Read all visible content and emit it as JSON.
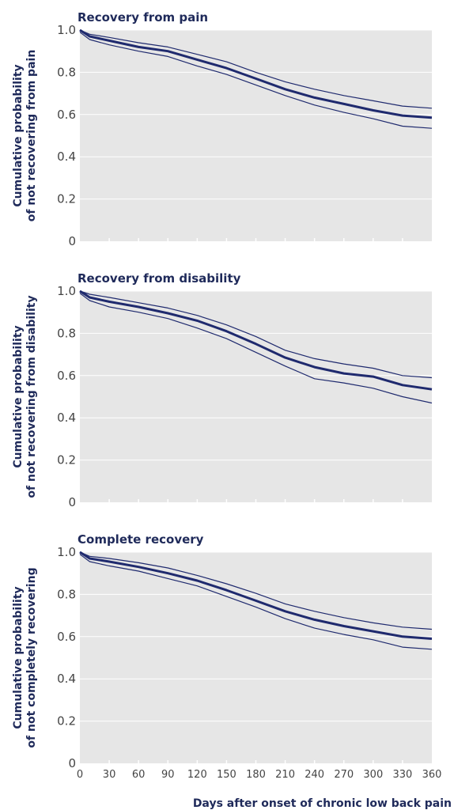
{
  "chart_data": [
    {
      "type": "line",
      "title": "Recovery from pain",
      "ylabel_lines": [
        "Cumulative probability",
        "of not recovering from pain"
      ],
      "ylim": [
        0,
        1.0
      ],
      "yticks": [
        "0",
        "0.2",
        "0.4",
        "0.6",
        "0.8",
        "1.0"
      ],
      "xlim": [
        0,
        360
      ],
      "x": [
        0,
        10,
        30,
        60,
        90,
        120,
        150,
        180,
        210,
        240,
        270,
        300,
        330,
        360
      ],
      "series": [
        {
          "role": "estimate",
          "values": [
            1.0,
            0.97,
            0.95,
            0.92,
            0.9,
            0.86,
            0.82,
            0.77,
            0.72,
            0.68,
            0.65,
            0.62,
            0.595,
            0.585
          ]
        },
        {
          "role": "upper",
          "values": [
            1.0,
            0.98,
            0.965,
            0.94,
            0.92,
            0.885,
            0.85,
            0.8,
            0.755,
            0.72,
            0.69,
            0.665,
            0.64,
            0.63
          ]
        },
        {
          "role": "lower",
          "values": [
            0.99,
            0.955,
            0.93,
            0.9,
            0.875,
            0.83,
            0.79,
            0.74,
            0.69,
            0.645,
            0.61,
            0.58,
            0.545,
            0.535
          ]
        }
      ]
    },
    {
      "type": "line",
      "title": "Recovery from disability",
      "ylabel_lines": [
        "Cumulative probability",
        "of not recovering from disability"
      ],
      "ylim": [
        0,
        1.0
      ],
      "yticks": [
        "0",
        "0.2",
        "0.4",
        "0.6",
        "0.8",
        "1.0"
      ],
      "xlim": [
        0,
        360
      ],
      "x": [
        0,
        10,
        30,
        60,
        90,
        120,
        150,
        180,
        210,
        240,
        270,
        300,
        330,
        360
      ],
      "series": [
        {
          "role": "estimate",
          "values": [
            1.0,
            0.97,
            0.95,
            0.925,
            0.895,
            0.86,
            0.81,
            0.75,
            0.685,
            0.64,
            0.61,
            0.595,
            0.555,
            0.535
          ]
        },
        {
          "role": "upper",
          "values": [
            1.0,
            0.985,
            0.97,
            0.945,
            0.92,
            0.885,
            0.84,
            0.785,
            0.72,
            0.68,
            0.655,
            0.635,
            0.6,
            0.59
          ]
        },
        {
          "role": "lower",
          "values": [
            0.99,
            0.955,
            0.925,
            0.9,
            0.87,
            0.825,
            0.775,
            0.71,
            0.645,
            0.585,
            0.565,
            0.54,
            0.5,
            0.47
          ]
        }
      ]
    },
    {
      "type": "line",
      "title": "Complete recovery",
      "ylabel_lines": [
        "Cumulative probability",
        "of not completely recovering"
      ],
      "ylim": [
        0,
        1.0
      ],
      "yticks": [
        "0",
        "0.2",
        "0.4",
        "0.6",
        "0.8",
        "1.0"
      ],
      "xlim": [
        0,
        360
      ],
      "xticks": [
        "0",
        "30",
        "60",
        "90",
        "120",
        "150",
        "180",
        "210",
        "240",
        "270",
        "300",
        "330",
        "360"
      ],
      "xlabel": "Days after onset of chronic low back pain",
      "x": [
        0,
        10,
        30,
        60,
        90,
        120,
        150,
        180,
        210,
        240,
        270,
        300,
        330,
        360
      ],
      "series": [
        {
          "role": "estimate",
          "values": [
            1.0,
            0.97,
            0.955,
            0.93,
            0.9,
            0.865,
            0.82,
            0.77,
            0.72,
            0.68,
            0.65,
            0.625,
            0.6,
            0.59
          ]
        },
        {
          "role": "upper",
          "values": [
            1.0,
            0.98,
            0.97,
            0.95,
            0.925,
            0.89,
            0.85,
            0.805,
            0.755,
            0.72,
            0.69,
            0.665,
            0.645,
            0.635
          ]
        },
        {
          "role": "lower",
          "values": [
            0.99,
            0.955,
            0.935,
            0.91,
            0.875,
            0.84,
            0.79,
            0.74,
            0.685,
            0.64,
            0.61,
            0.585,
            0.55,
            0.54
          ]
        }
      ]
    }
  ],
  "colors": {
    "estimate": "#1f2a6e",
    "ci": "#1f2a6e",
    "panel": "#e6e6e6",
    "grid": "#ffffff"
  }
}
